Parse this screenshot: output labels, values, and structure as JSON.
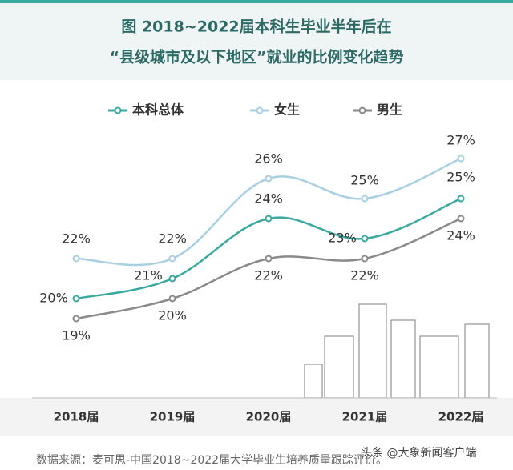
{
  "chart_data": {
    "type": "line",
    "title": "图  2018~2022届本科生毕业半年后在",
    "subtitle": "“县级城市及以下地区”就业的比例变化趋势",
    "categories": [
      "2018届",
      "2019届",
      "2020届",
      "2021届",
      "2022届"
    ],
    "series": [
      {
        "name": "本科总体",
        "color": "#3aa99f",
        "values": [
          20,
          21,
          24,
          23,
          25
        ],
        "value_labels": [
          "20%",
          "21%",
          "24%",
          "23%",
          "25%"
        ]
      },
      {
        "name": "女生",
        "color": "#a9cfe2",
        "values": [
          22,
          22,
          26,
          25,
          27
        ],
        "value_labels": [
          "22%",
          "22%",
          "26%",
          "25%",
          "27%"
        ]
      },
      {
        "name": "男生",
        "color": "#8a8a8a",
        "values": [
          19,
          20,
          22,
          22,
          24
        ],
        "value_labels": [
          "19%",
          "20%",
          "22%",
          "22%",
          "24%"
        ]
      }
    ],
    "source": "数据来源：麦可思-中国2018~2022届大学毕业生培养质量跟踪评价。",
    "watermark": "头条 @大象新闻客户端"
  }
}
